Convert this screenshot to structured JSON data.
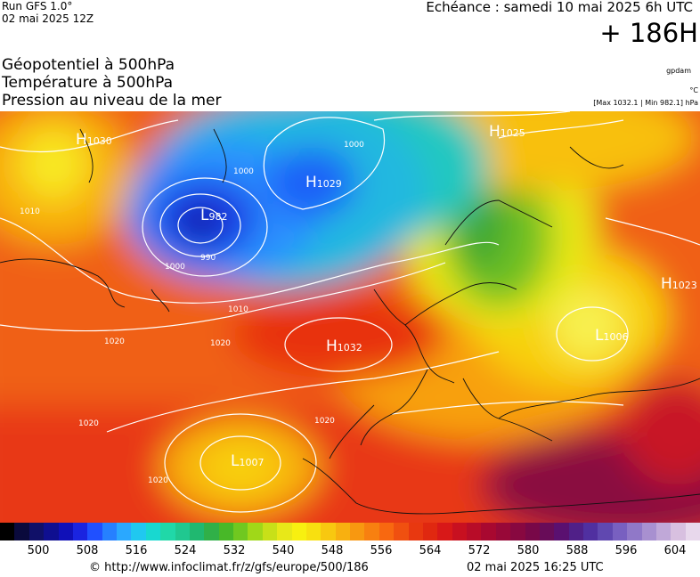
{
  "header": {
    "run": "Run GFS 1.0°",
    "run_date": "02 mai 2025 12Z",
    "echeance": "Echéance : samedi 10 mai 2025 6h UTC",
    "lead": "+ 186H",
    "title_lines": [
      "Géopotentiel à 500hPa",
      "Température à 500hPa",
      "Pression au niveau de la mer"
    ],
    "unit_gpdam": "gpdam",
    "unit_temp": "°C",
    "pressure_range": "[Max 1032.1 | Min 982.1] hPa"
  },
  "pressure_centres": [
    {
      "type": "H",
      "value": "1030"
    },
    {
      "type": "H",
      "value": "1029"
    },
    {
      "type": "H",
      "value": "1025"
    },
    {
      "type": "H",
      "value": "1023"
    },
    {
      "type": "H",
      "value": "1032"
    },
    {
      "type": "L",
      "value": "982"
    },
    {
      "type": "L",
      "value": "1006"
    },
    {
      "type": "L",
      "value": "1007"
    }
  ],
  "isobar_labels": [
    "1000",
    "1000",
    "1000",
    "1010",
    "1010",
    "1020",
    "1020",
    "1020",
    "1020",
    "1020",
    "990"
  ],
  "scale": {
    "ticks": [
      "500",
      "508",
      "516",
      "524",
      "532",
      "540",
      "548",
      "556",
      "564",
      "572",
      "580",
      "588",
      "596",
      "604"
    ],
    "colors": [
      "#000000",
      "#0a0a3c",
      "#101068",
      "#0f0f90",
      "#1010b8",
      "#1a24e0",
      "#2050ff",
      "#2680ff",
      "#2aa8ff",
      "#20c8f0",
      "#18d8d0",
      "#20d8a8",
      "#20c890",
      "#20b870",
      "#30b048",
      "#48b828",
      "#70c820",
      "#a0d818",
      "#c8e018",
      "#e8e818",
      "#f8f010",
      "#f8e010",
      "#f8c810",
      "#f8b010",
      "#f89810",
      "#f88010",
      "#f86810",
      "#f05010",
      "#e83810",
      "#e02810",
      "#d81818",
      "#c81020",
      "#b80c28",
      "#a80830",
      "#980838",
      "#880840",
      "#780848",
      "#680c58",
      "#5a1070",
      "#502088",
      "#5030a0",
      "#6048b0",
      "#7860c0",
      "#9078c8",
      "#a890d0",
      "#c0a8d8",
      "#d8c0e0",
      "#e8d8ec"
    ]
  },
  "footer": {
    "url": "© http://www.infoclimat.fr/z/gfs/europe/500/186",
    "generated": "02 mai 2025 16:25 UTC"
  }
}
